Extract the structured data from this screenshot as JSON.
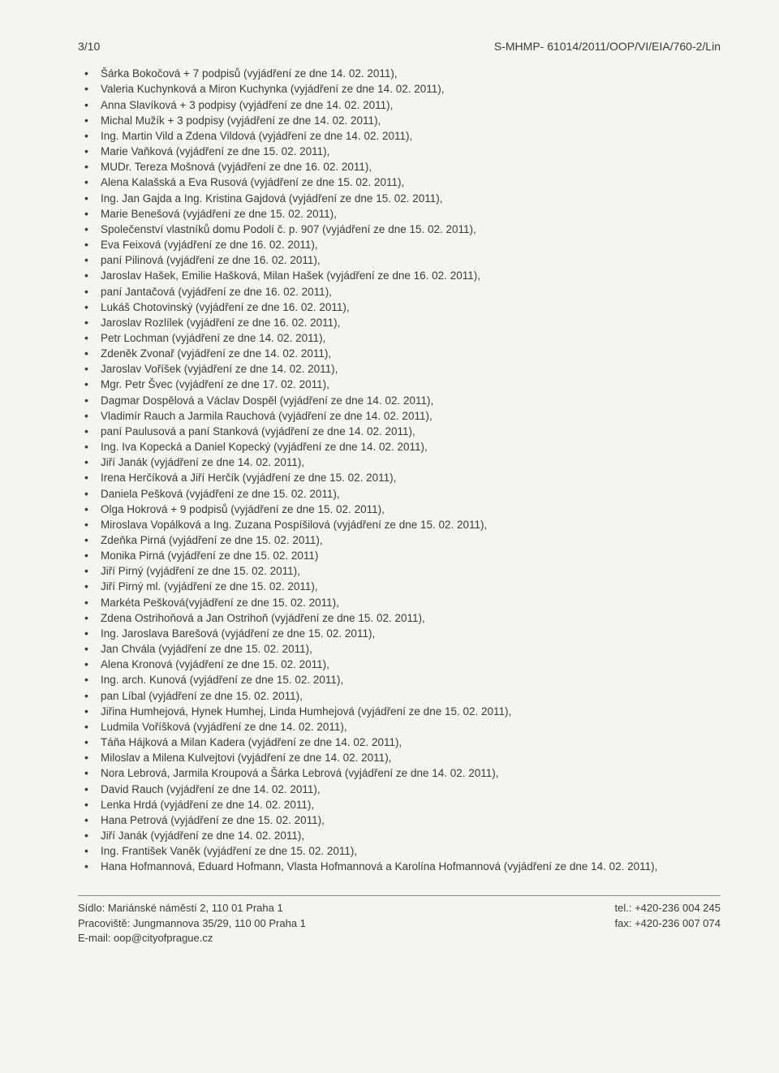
{
  "header": {
    "page_number": "3/10",
    "doc_ref": "S-MHMP- 61014/2011/OOP/VI/EIA/760-2/Lin"
  },
  "items": [
    "Šárka Bokočová + 7 podpisů (vyjádření ze dne 14. 02. 2011),",
    "Valeria Kuchynková a Miron Kuchynka (vyjádření ze dne 14. 02. 2011),",
    "Anna Slavíková + 3 podpisy (vyjádření ze dne 14. 02. 2011),",
    "Michal Mužík + 3 podpisy (vyjádření ze dne 14. 02. 2011),",
    "Ing. Martin Vild a Zdena Vildová (vyjádření ze dne 14. 02. 2011),",
    "Marie Vaňková (vyjádření ze dne 15. 02. 2011),",
    "MUDr. Tereza Mošnová (vyjádření ze dne 16. 02. 2011),",
    "Alena Kalašská a Eva Rusová (vyjádření ze dne 15. 02. 2011),",
    "Ing. Jan Gajda a Ing. Kristina Gajdová (vyjádření ze dne 15. 02. 2011),",
    "Marie Benešová (vyjádření ze dne 15. 02. 2011),",
    "Společenství vlastníků domu Podolí č. p. 907 (vyjádření ze dne 15. 02. 2011),",
    "Eva Feixová (vyjádření ze dne 16. 02. 2011),",
    "paní Pilinová (vyjádření ze dne 16. 02. 2011),",
    "Jaroslav Hašek, Emilie Hašková, Milan Hašek (vyjádření ze dne 16. 02. 2011),",
    "paní Jantačová (vyjádření ze dne 16. 02. 2011),",
    "Lukáš Chotovinský (vyjádření ze dne 16. 02. 2011),",
    "Jaroslav Rozlílek (vyjádření ze dne 16. 02. 2011),",
    "Petr Lochman (vyjádření ze dne 14. 02. 2011),",
    "Zdeněk Zvonař (vyjádření ze dne 14. 02. 2011),",
    "Jaroslav Voříšek (vyjádření ze dne 14. 02. 2011),",
    "Mgr. Petr Švec (vyjádření ze dne 17. 02. 2011),",
    "Dagmar Dospělová a Václav Dospěl (vyjádření ze dne 14. 02. 2011),",
    "Vladimír Rauch a Jarmila Rauchová (vyjádření ze dne 14. 02. 2011),",
    "paní Paulusová a paní Stanková (vyjádření ze dne 14. 02. 2011),",
    "Ing. Iva Kopecká a Daniel Kopecký (vyjádření ze dne 14. 02. 2011),",
    "Jiří Janák (vyjádření ze dne 14. 02. 2011),",
    "Irena Herčíková a Jiří Herčík (vyjádření ze dne 15. 02. 2011),",
    "Daniela Pešková (vyjádření ze dne 15. 02. 2011),",
    "Olga Hokrová + 9 podpisů (vyjádření ze dne 15. 02. 2011),",
    "Miroslava Vopálková a Ing. Zuzana Pospíšilová (vyjádření ze dne 15. 02. 2011),",
    "Zdeňka Pirná (vyjádření ze dne 15. 02. 2011),",
    "Monika Pirná (vyjádření ze dne 15. 02. 2011)",
    "Jiří Pirný (vyjádření ze dne 15. 02. 2011),",
    "Jiří Pirný ml. (vyjádření ze dne 15. 02. 2011),",
    "Markéta Pešková(vyjádření ze dne 15. 02. 2011),",
    "Zdena Ostrihoňová a Jan Ostrihoň (vyjádření ze dne 15. 02. 2011),",
    "Ing. Jaroslava Barešová (vyjádření ze dne 15. 02. 2011),",
    "Jan Chvála (vyjádření ze dne 15. 02. 2011),",
    "Alena Kronová (vyjádření ze dne 15. 02. 2011),",
    "Ing. arch. Kunová (vyjádření ze dne 15. 02. 2011),",
    "pan Líbal (vyjádření ze dne 15. 02. 2011),",
    "Jiřina Humhejová, Hynek Humhej, Linda Humhejová (vyjádření ze dne 15. 02. 2011),",
    "Ludmila Voříšková (vyjádření ze dne 14. 02. 2011),",
    "Táňa Hájková a Milan Kadera (vyjádření ze dne 14. 02. 2011),",
    "Miloslav a Milena Kulvejtovi (vyjádření ze dne 14. 02. 2011),",
    "Nora Lebrová, Jarmila Kroupová a Šárka Lebrová (vyjádření ze dne 14. 02. 2011),",
    "David Rauch (vyjádření ze dne 14. 02. 2011),",
    "Lenka Hrdá (vyjádření ze dne 14. 02. 2011),",
    "Hana Petrová (vyjádření ze dne 15. 02. 2011),",
    "Jiří Janák (vyjádření ze dne 14. 02. 2011),",
    "Ing. František Vaněk (vyjádření ze dne 15. 02. 2011),",
    "Hana Hofmannová, Eduard Hofmann, Vlasta Hofmannová a Karolína Hofmannová (vyjádření ze dne 14. 02. 2011),"
  ],
  "footer": {
    "left_lines": [
      "Sídlo: Mariánské náměstí 2, 110 01  Praha 1",
      "Pracoviště: Jungmannova 35/29, 110 00 Praha 1",
      "E-mail: oop@cityofprague.cz"
    ],
    "right_lines": [
      "tel.: +420-236 004 245",
      "fax: +420-236 007 074"
    ]
  }
}
